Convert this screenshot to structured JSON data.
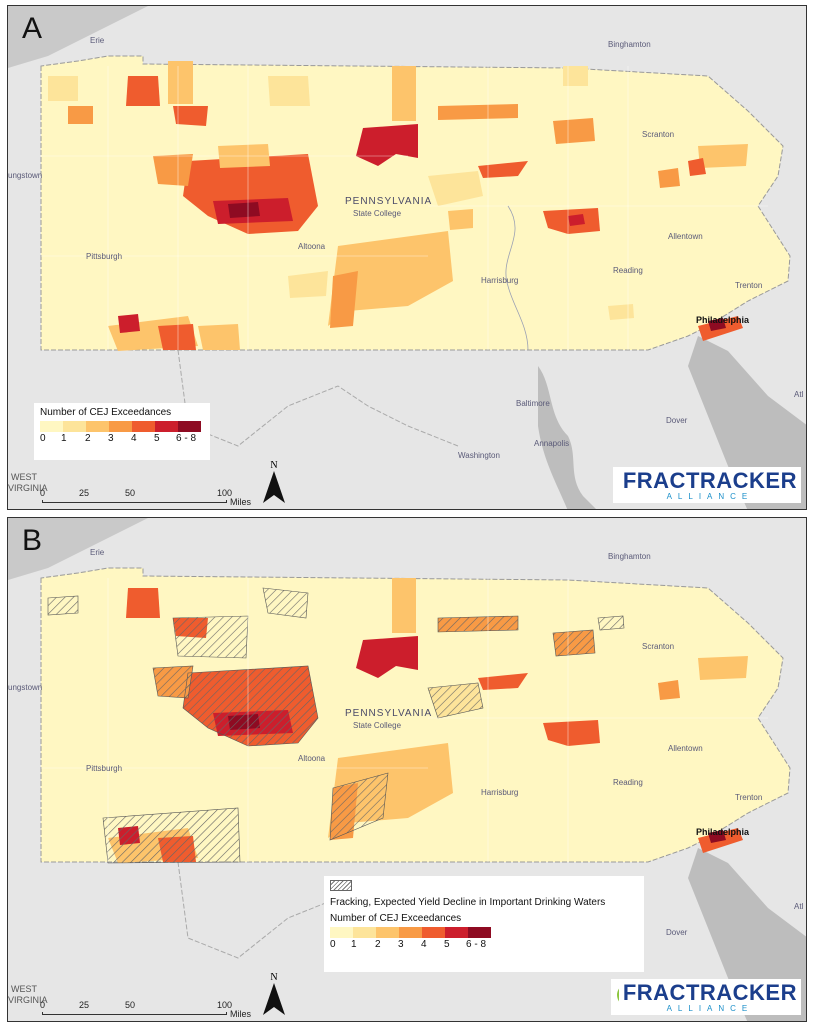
{
  "panels": [
    {
      "letter": "A",
      "legend": {
        "title": "Number of CEJ Exceedances",
        "classes": [
          "0",
          "1",
          "2",
          "3",
          "4",
          "5",
          "6 - 8"
        ],
        "colors": [
          "#fff7c2",
          "#fde49a",
          "#fdc46b",
          "#f89a45",
          "#ef5c2e",
          "#cc1e2c",
          "#8e0b22"
        ]
      }
    },
    {
      "letter": "B",
      "legend": {
        "hatch_label": "Fracking, Expected Yield Decline in Important Drinking Waters",
        "title": "Number of CEJ Exceedances",
        "classes": [
          "0",
          "1",
          "2",
          "3",
          "4",
          "5",
          "6 - 8"
        ],
        "colors": [
          "#fff7c2",
          "#fde49a",
          "#fdc46b",
          "#f89a45",
          "#ef5c2e",
          "#cc1e2c",
          "#8e0b22"
        ]
      }
    }
  ],
  "cities": {
    "erie": "Erie",
    "binghamton": "Binghamton",
    "youngstown": "ungstown",
    "scranton": "Scranton",
    "state": "PENNSYLVANIA",
    "state_college": "State College",
    "altoona": "Altoona",
    "allentown": "Allentown",
    "pittsburgh": "Pittsburgh",
    "harrisburg": "Harrisburg",
    "reading": "Reading",
    "trenton": "Trenton",
    "philadelphia": "Philadelphia",
    "baltimore": "Baltimore",
    "annapolis": "Annapolis",
    "dover": "Dover",
    "washington": "Washington",
    "atl": "Atl",
    "west_virginia_1": "WEST",
    "west_virginia_2": "VIRGINIA"
  },
  "scalebar": {
    "ticks": [
      "0",
      "25",
      "50",
      "100"
    ],
    "unit": "Miles"
  },
  "north_label": "N",
  "logo": {
    "main": "FRACTRACKER",
    "sub": "ALLIANCE"
  },
  "colors": {
    "land": "#fff7c2",
    "outside": "#e6e6e6",
    "lake": "#cfcfcf",
    "water": "#bdbdbd"
  }
}
